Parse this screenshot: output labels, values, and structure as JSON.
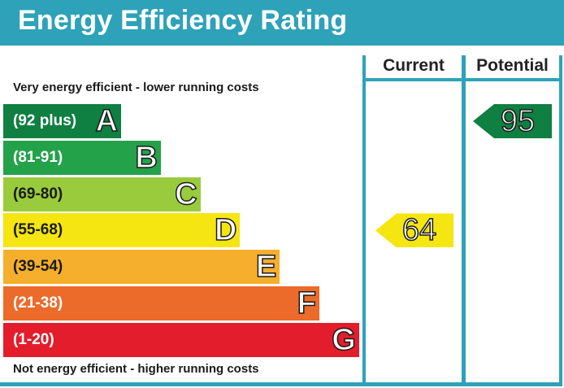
{
  "title": "Energy Efficiency Rating",
  "columns": {
    "current": "Current",
    "potential": "Potential"
  },
  "top_note": "Very energy efficient - lower running costs",
  "bottom_note": "Not energy efficient - higher running costs",
  "colors": {
    "accent": "#2ea2b8",
    "A": "#0f7f42",
    "B": "#24a24a",
    "C": "#9acb3c",
    "D": "#f5e510",
    "E": "#f6ae2d",
    "F": "#ec6b2a",
    "G": "#e31d2b"
  },
  "chart_data": {
    "type": "bar",
    "bands": [
      {
        "letter": "A",
        "range": "(92 plus)",
        "min": 92,
        "max": null
      },
      {
        "letter": "B",
        "range": "(81-91)",
        "min": 81,
        "max": 91
      },
      {
        "letter": "C",
        "range": "(69-80)",
        "min": 69,
        "max": 80
      },
      {
        "letter": "D",
        "range": "(55-68)",
        "min": 55,
        "max": 68
      },
      {
        "letter": "E",
        "range": "(39-54)",
        "min": 39,
        "max": 54
      },
      {
        "letter": "F",
        "range": "(21-38)",
        "min": 21,
        "max": 38
      },
      {
        "letter": "G",
        "range": "(1-20)",
        "min": 1,
        "max": 20
      }
    ],
    "current": {
      "value": "64",
      "band": "D"
    },
    "potential": {
      "value": "95",
      "band": "A"
    }
  }
}
